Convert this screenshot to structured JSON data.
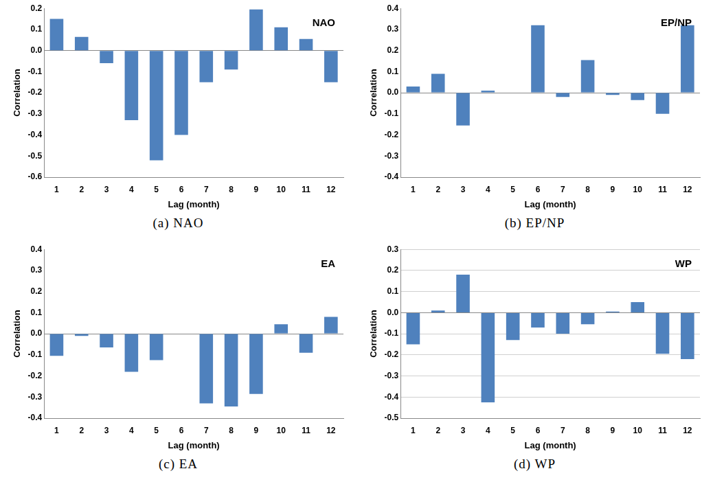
{
  "chart_data": [
    {
      "type": "bar",
      "title": "(a) NAO",
      "annotation": "NAO",
      "x_label": "Lag (month)",
      "y_label": "Correlation",
      "categories": [
        "1",
        "2",
        "3",
        "4",
        "5",
        "6",
        "7",
        "8",
        "9",
        "10",
        "11",
        "12"
      ],
      "values": [
        0.15,
        0.065,
        -0.06,
        -0.33,
        -0.52,
        -0.4,
        -0.15,
        -0.09,
        0.195,
        0.11,
        0.055,
        -0.15
      ],
      "color": "#4f81bd",
      "ylim": [
        -0.6,
        0.2
      ],
      "yticks": [
        -0.6,
        -0.5,
        -0.4,
        -0.3,
        -0.2,
        -0.1,
        {
          "value": 0,
          "label": "0.0"
        },
        0.1,
        0.2
      ],
      "grid": false
    },
    {
      "type": "bar",
      "title": "(b) EP/NP",
      "annotation": "EP/NP",
      "x_label": "Lag (month)",
      "y_label": "Correlation",
      "categories": [
        "1",
        "2",
        "3",
        "4",
        "5",
        "6",
        "7",
        "8",
        "9",
        "10",
        "11",
        "12"
      ],
      "values": [
        0.03,
        0.09,
        -0.155,
        0.01,
        0,
        0.32,
        -0.02,
        0.155,
        -0.01,
        -0.035,
        -0.1,
        0.32
      ],
      "color": "#4f81bd",
      "ylim": [
        -0.4,
        0.4
      ],
      "yticks": [
        -0.4,
        -0.3,
        -0.2,
        -0.1,
        {
          "value": 0,
          "label": "0.0"
        },
        0.1,
        0.2,
        0.3,
        0.4
      ],
      "grid": false
    },
    {
      "type": "bar",
      "title": "(c) EA",
      "annotation": "EA",
      "x_label": "Lag (month)",
      "y_label": "Correlation",
      "categories": [
        "1",
        "2",
        "3",
        "4",
        "5",
        "6",
        "7",
        "8",
        "9",
        "10",
        "11",
        "12"
      ],
      "values": [
        -0.105,
        -0.01,
        -0.065,
        -0.18,
        -0.125,
        0.002,
        -0.33,
        -0.345,
        -0.285,
        0.045,
        -0.09,
        0.08
      ],
      "color": "#4f81bd",
      "ylim": [
        -0.4,
        0.4
      ],
      "yticks": [
        -0.4,
        -0.3,
        -0.2,
        -0.1,
        {
          "value": 0,
          "label": "0.0"
        },
        0.1,
        0.2,
        0.3,
        0.4
      ],
      "grid": false
    },
    {
      "type": "bar",
      "title": "(d) WP",
      "annotation": "WP",
      "x_label": "Lag (month)",
      "y_label": "Correlation",
      "categories": [
        "1",
        "2",
        "3",
        "4",
        "5",
        "6",
        "7",
        "8",
        "9",
        "10",
        "11",
        "12"
      ],
      "values": [
        -0.15,
        0.01,
        0.18,
        -0.425,
        -0.13,
        -0.07,
        -0.1,
        -0.055,
        0.005,
        0.05,
        -0.195,
        -0.22
      ],
      "color": "#4f81bd",
      "ylim": [
        -0.5,
        0.3
      ],
      "yticks": [
        -0.5,
        -0.4,
        -0.3,
        -0.2,
        -0.1,
        {
          "value": 0,
          "label": "0.0"
        },
        0.1,
        0.2,
        0.3
      ],
      "grid": true
    }
  ]
}
